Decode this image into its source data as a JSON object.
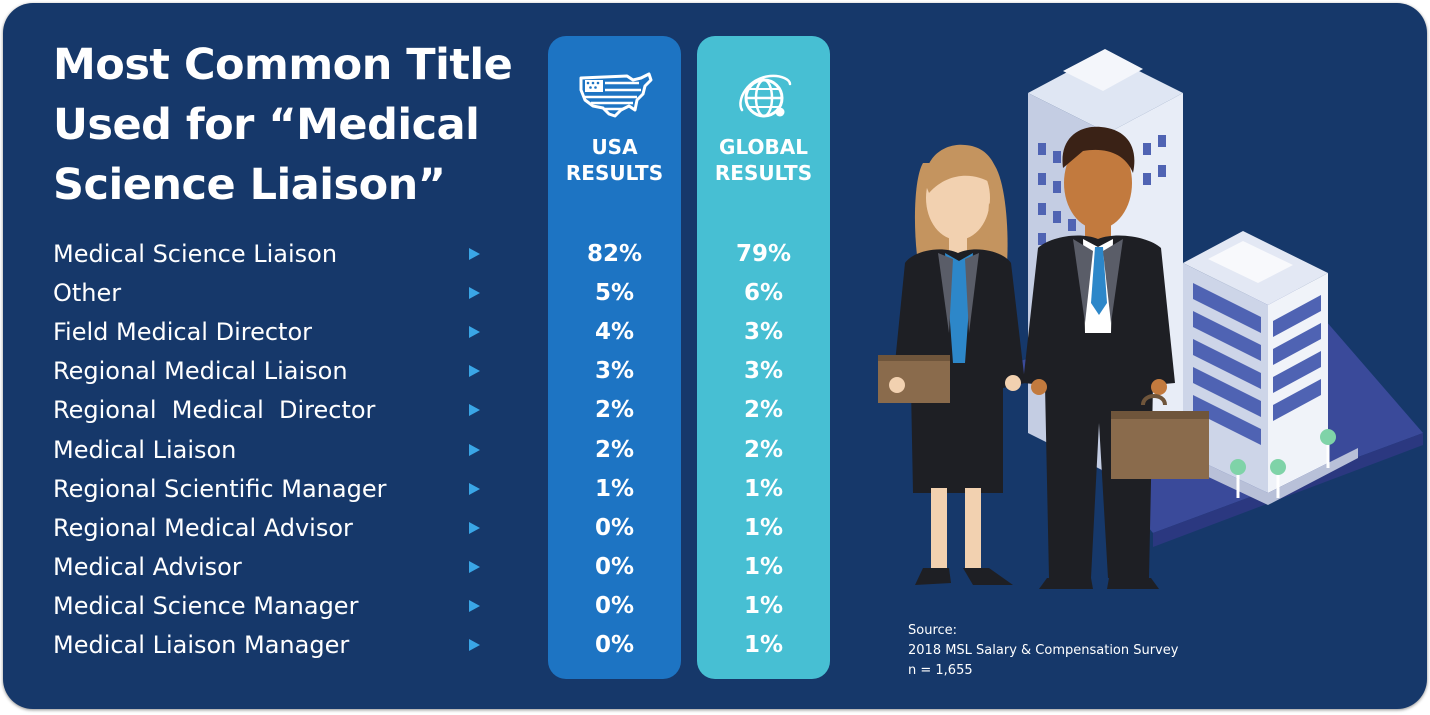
{
  "title_lines": [
    "Most Common Title",
    "Used for “Medical",
    "Science Liaison”"
  ],
  "columns": {
    "usa": {
      "header_lines": [
        "USA",
        "RESULTS"
      ],
      "icon": "usa-map-flag-icon",
      "color": "#1d74c3"
    },
    "global": {
      "header_lines": [
        "GLOBAL",
        "RESULTS"
      ],
      "icon": "globe-icon",
      "color": "#47bfd3"
    }
  },
  "chart_data": {
    "type": "table",
    "columns": [
      "USA RESULTS",
      "GLOBAL RESULTS"
    ],
    "rows": [
      {
        "label": "Medical Science Liaison",
        "usa": "82%",
        "global": "79%"
      },
      {
        "label": "Other",
        "usa": "5%",
        "global": "6%"
      },
      {
        "label": "Field Medical Director",
        "usa": "4%",
        "global": "3%"
      },
      {
        "label": "Regional Medical Liaison",
        "usa": "3%",
        "global": "3%"
      },
      {
        "label": "Regional  Medical  Director",
        "usa": "2%",
        "global": "2%"
      },
      {
        "label": "Medical Liaison",
        "usa": "2%",
        "global": "2%"
      },
      {
        "label": "Regional Scientific Manager",
        "usa": "1%",
        "global": "1%"
      },
      {
        "label": "Regional Medical Advisor",
        "usa": "0%",
        "global": "1%"
      },
      {
        "label": "Medical Advisor",
        "usa": "0%",
        "global": "1%"
      },
      {
        "label": "Medical Science Manager",
        "usa": "0%",
        "global": "1%"
      },
      {
        "label": "Medical Liaison Manager",
        "usa": "0%",
        "global": "1%"
      }
    ]
  },
  "source": {
    "label": "Source:",
    "survey": "2018 MSL Salary & Compensation Survey",
    "n": "n = 1,655"
  },
  "colors": {
    "background": "#16386a",
    "arrow": "#3aa6e6"
  }
}
